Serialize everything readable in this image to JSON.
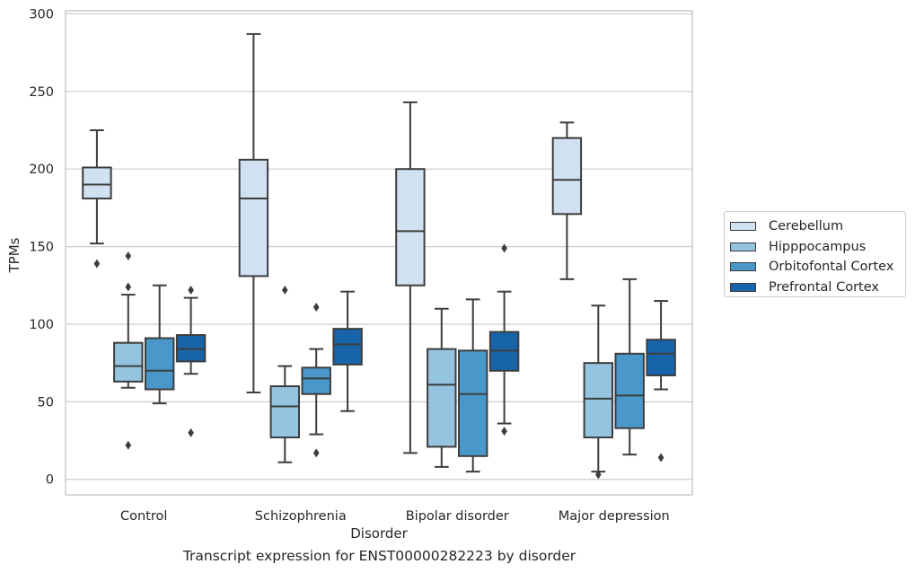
{
  "chart_data": {
    "type": "box",
    "title": "",
    "caption": "Transcript expression for ENST00000282223 by disorder",
    "xlabel": "Disorder",
    "ylabel": "TPMs",
    "ylim": [
      -10,
      302
    ],
    "yticks": [
      0,
      50,
      100,
      150,
      200,
      250,
      300
    ],
    "grid": "horizontal",
    "legend_position": "right",
    "categories": [
      "Control",
      "Schizophrenia",
      "Bipolar disorder",
      "Major depression"
    ],
    "series": [
      {
        "name": "Cerebellum",
        "color": "#d0e1f2",
        "boxes": [
          {
            "min": 152,
            "q1": 181,
            "median": 190,
            "q3": 201,
            "max": 225,
            "outliers": [
              139
            ]
          },
          {
            "min": 56,
            "q1": 131,
            "median": 181,
            "q3": 206,
            "max": 287,
            "outliers": []
          },
          {
            "min": 17,
            "q1": 125,
            "median": 160,
            "q3": 200,
            "max": 243,
            "outliers": []
          },
          {
            "min": 129,
            "q1": 171,
            "median": 193,
            "q3": 220,
            "max": 230,
            "outliers": []
          }
        ]
      },
      {
        "name": "Hipppocampus",
        "color": "#94c4df",
        "boxes": [
          {
            "min": 59,
            "q1": 63,
            "median": 73,
            "q3": 88,
            "max": 119,
            "outliers": [
              144,
              124,
              22
            ]
          },
          {
            "min": 11,
            "q1": 27,
            "median": 47,
            "q3": 60,
            "max": 73,
            "outliers": [
              122
            ]
          },
          {
            "min": 8,
            "q1": 21,
            "median": 61,
            "q3": 84,
            "max": 110,
            "outliers": []
          },
          {
            "min": 5,
            "q1": 27,
            "median": 52,
            "q3": 75,
            "max": 112,
            "outliers": [
              3
            ]
          }
        ]
      },
      {
        "name": "Orbitofontal Cortex",
        "color": "#4a98c9",
        "boxes": [
          {
            "min": 49,
            "q1": 58,
            "median": 70,
            "q3": 91,
            "max": 125,
            "outliers": []
          },
          {
            "min": 29,
            "q1": 55,
            "median": 65,
            "q3": 72,
            "max": 84,
            "outliers": [
              111,
              17
            ]
          },
          {
            "min": 5,
            "q1": 15,
            "median": 55,
            "q3": 83,
            "max": 116,
            "outliers": []
          },
          {
            "min": 16,
            "q1": 33,
            "median": 54,
            "q3": 81,
            "max": 129,
            "outliers": []
          }
        ]
      },
      {
        "name": "Prefrontal Cortex",
        "color": "#1764ab",
        "boxes": [
          {
            "min": 68,
            "q1": 76,
            "median": 84,
            "q3": 93,
            "max": 117,
            "outliers": [
              122,
              30
            ]
          },
          {
            "min": 44,
            "q1": 74,
            "median": 87,
            "q3": 97,
            "max": 121,
            "outliers": []
          },
          {
            "min": 36,
            "q1": 70,
            "median": 83,
            "q3": 95,
            "max": 121,
            "outliers": [
              149,
              31
            ]
          },
          {
            "min": 58,
            "q1": 67,
            "median": 81,
            "q3": 90,
            "max": 115,
            "outliers": [
              14
            ]
          }
        ]
      }
    ]
  }
}
